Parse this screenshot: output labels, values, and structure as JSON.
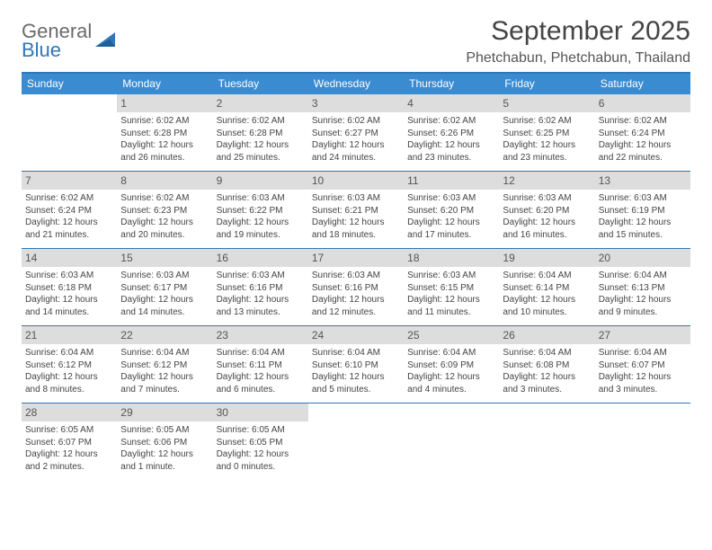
{
  "brand": {
    "line1": "General",
    "line2": "Blue"
  },
  "title": "September 2025",
  "location": "Phetchabun, Phetchabun, Thailand",
  "colors": {
    "accent": "#3b8bd0",
    "rule": "#2f77bb",
    "daybar": "#dddddd",
    "text": "#444444",
    "bg": "#ffffff"
  },
  "dow": [
    "Sunday",
    "Monday",
    "Tuesday",
    "Wednesday",
    "Thursday",
    "Friday",
    "Saturday"
  ],
  "grid": {
    "columns": 7,
    "rows": 5,
    "font_size_day": 12,
    "font_size_facts": 10
  },
  "weeks": [
    [
      {
        "n": "",
        "sunrise": "",
        "sunset": "",
        "daylight": ""
      },
      {
        "n": "1",
        "sunrise": "Sunrise: 6:02 AM",
        "sunset": "Sunset: 6:28 PM",
        "daylight": "Daylight: 12 hours and 26 minutes."
      },
      {
        "n": "2",
        "sunrise": "Sunrise: 6:02 AM",
        "sunset": "Sunset: 6:28 PM",
        "daylight": "Daylight: 12 hours and 25 minutes."
      },
      {
        "n": "3",
        "sunrise": "Sunrise: 6:02 AM",
        "sunset": "Sunset: 6:27 PM",
        "daylight": "Daylight: 12 hours and 24 minutes."
      },
      {
        "n": "4",
        "sunrise": "Sunrise: 6:02 AM",
        "sunset": "Sunset: 6:26 PM",
        "daylight": "Daylight: 12 hours and 23 minutes."
      },
      {
        "n": "5",
        "sunrise": "Sunrise: 6:02 AM",
        "sunset": "Sunset: 6:25 PM",
        "daylight": "Daylight: 12 hours and 23 minutes."
      },
      {
        "n": "6",
        "sunrise": "Sunrise: 6:02 AM",
        "sunset": "Sunset: 6:24 PM",
        "daylight": "Daylight: 12 hours and 22 minutes."
      }
    ],
    [
      {
        "n": "7",
        "sunrise": "Sunrise: 6:02 AM",
        "sunset": "Sunset: 6:24 PM",
        "daylight": "Daylight: 12 hours and 21 minutes."
      },
      {
        "n": "8",
        "sunrise": "Sunrise: 6:02 AM",
        "sunset": "Sunset: 6:23 PM",
        "daylight": "Daylight: 12 hours and 20 minutes."
      },
      {
        "n": "9",
        "sunrise": "Sunrise: 6:03 AM",
        "sunset": "Sunset: 6:22 PM",
        "daylight": "Daylight: 12 hours and 19 minutes."
      },
      {
        "n": "10",
        "sunrise": "Sunrise: 6:03 AM",
        "sunset": "Sunset: 6:21 PM",
        "daylight": "Daylight: 12 hours and 18 minutes."
      },
      {
        "n": "11",
        "sunrise": "Sunrise: 6:03 AM",
        "sunset": "Sunset: 6:20 PM",
        "daylight": "Daylight: 12 hours and 17 minutes."
      },
      {
        "n": "12",
        "sunrise": "Sunrise: 6:03 AM",
        "sunset": "Sunset: 6:20 PM",
        "daylight": "Daylight: 12 hours and 16 minutes."
      },
      {
        "n": "13",
        "sunrise": "Sunrise: 6:03 AM",
        "sunset": "Sunset: 6:19 PM",
        "daylight": "Daylight: 12 hours and 15 minutes."
      }
    ],
    [
      {
        "n": "14",
        "sunrise": "Sunrise: 6:03 AM",
        "sunset": "Sunset: 6:18 PM",
        "daylight": "Daylight: 12 hours and 14 minutes."
      },
      {
        "n": "15",
        "sunrise": "Sunrise: 6:03 AM",
        "sunset": "Sunset: 6:17 PM",
        "daylight": "Daylight: 12 hours and 14 minutes."
      },
      {
        "n": "16",
        "sunrise": "Sunrise: 6:03 AM",
        "sunset": "Sunset: 6:16 PM",
        "daylight": "Daylight: 12 hours and 13 minutes."
      },
      {
        "n": "17",
        "sunrise": "Sunrise: 6:03 AM",
        "sunset": "Sunset: 6:16 PM",
        "daylight": "Daylight: 12 hours and 12 minutes."
      },
      {
        "n": "18",
        "sunrise": "Sunrise: 6:03 AM",
        "sunset": "Sunset: 6:15 PM",
        "daylight": "Daylight: 12 hours and 11 minutes."
      },
      {
        "n": "19",
        "sunrise": "Sunrise: 6:04 AM",
        "sunset": "Sunset: 6:14 PM",
        "daylight": "Daylight: 12 hours and 10 minutes."
      },
      {
        "n": "20",
        "sunrise": "Sunrise: 6:04 AM",
        "sunset": "Sunset: 6:13 PM",
        "daylight": "Daylight: 12 hours and 9 minutes."
      }
    ],
    [
      {
        "n": "21",
        "sunrise": "Sunrise: 6:04 AM",
        "sunset": "Sunset: 6:12 PM",
        "daylight": "Daylight: 12 hours and 8 minutes."
      },
      {
        "n": "22",
        "sunrise": "Sunrise: 6:04 AM",
        "sunset": "Sunset: 6:12 PM",
        "daylight": "Daylight: 12 hours and 7 minutes."
      },
      {
        "n": "23",
        "sunrise": "Sunrise: 6:04 AM",
        "sunset": "Sunset: 6:11 PM",
        "daylight": "Daylight: 12 hours and 6 minutes."
      },
      {
        "n": "24",
        "sunrise": "Sunrise: 6:04 AM",
        "sunset": "Sunset: 6:10 PM",
        "daylight": "Daylight: 12 hours and 5 minutes."
      },
      {
        "n": "25",
        "sunrise": "Sunrise: 6:04 AM",
        "sunset": "Sunset: 6:09 PM",
        "daylight": "Daylight: 12 hours and 4 minutes."
      },
      {
        "n": "26",
        "sunrise": "Sunrise: 6:04 AM",
        "sunset": "Sunset: 6:08 PM",
        "daylight": "Daylight: 12 hours and 3 minutes."
      },
      {
        "n": "27",
        "sunrise": "Sunrise: 6:04 AM",
        "sunset": "Sunset: 6:07 PM",
        "daylight": "Daylight: 12 hours and 3 minutes."
      }
    ],
    [
      {
        "n": "28",
        "sunrise": "Sunrise: 6:05 AM",
        "sunset": "Sunset: 6:07 PM",
        "daylight": "Daylight: 12 hours and 2 minutes."
      },
      {
        "n": "29",
        "sunrise": "Sunrise: 6:05 AM",
        "sunset": "Sunset: 6:06 PM",
        "daylight": "Daylight: 12 hours and 1 minute."
      },
      {
        "n": "30",
        "sunrise": "Sunrise: 6:05 AM",
        "sunset": "Sunset: 6:05 PM",
        "daylight": "Daylight: 12 hours and 0 minutes."
      },
      {
        "n": "",
        "sunrise": "",
        "sunset": "",
        "daylight": ""
      },
      {
        "n": "",
        "sunrise": "",
        "sunset": "",
        "daylight": ""
      },
      {
        "n": "",
        "sunrise": "",
        "sunset": "",
        "daylight": ""
      },
      {
        "n": "",
        "sunrise": "",
        "sunset": "",
        "daylight": ""
      }
    ]
  ]
}
